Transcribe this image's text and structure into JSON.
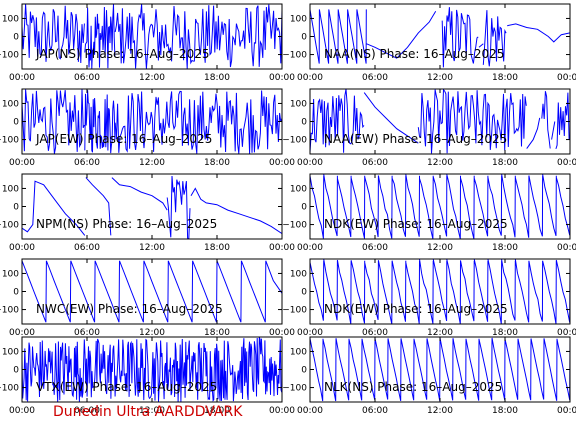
{
  "footer": {
    "label": "Dunedin Ultra AARDDVARK",
    "color": "#cc0000"
  },
  "style": {
    "trace_color": "#0000ff",
    "axis_color": "#000000",
    "background": "#ffffff"
  },
  "chart_data": [
    {
      "type": "line",
      "title": "JAP(NS) Phase: 16–Aug–2025",
      "xlim": [
        0,
        24
      ],
      "ylim": [
        -180,
        180
      ],
      "x_ticks": [
        "00:00",
        "06:00",
        "12:00",
        "18:00",
        "00:00"
      ],
      "y_ticks": [
        "100",
        "0",
        "−100"
      ],
      "segments": [
        {
          "kind": "noise",
          "x": [
            0,
            5.8
          ]
        },
        {
          "kind": "burst",
          "x": [
            5.8,
            8.6
          ]
        },
        {
          "kind": "noise",
          "x": [
            8.6,
            24
          ]
        }
      ]
    },
    {
      "type": "line",
      "title": "NAA(NS) Phase: 16–Aug–2025",
      "xlim": [
        0,
        24
      ],
      "ylim": [
        -180,
        180
      ],
      "x_ticks": [
        "00:00",
        "06:00",
        "12:00",
        "18:00",
        "00:00"
      ],
      "y_ticks": [
        "100",
        "0",
        "−100"
      ],
      "segments": [
        {
          "kind": "ramps",
          "x": [
            0,
            5.2
          ],
          "count": 6,
          "from": 150,
          "to": -150
        },
        {
          "kind": "points",
          "pts": [
            [
              5.2,
              -40
            ],
            [
              6,
              -60
            ],
            [
              7,
              -90
            ],
            [
              8,
              -120
            ],
            [
              9,
              -60
            ],
            [
              10,
              20
            ],
            [
              11,
              80
            ],
            [
              11.6,
              140
            ]
          ]
        },
        {
          "kind": "noise",
          "x": [
            12.2,
            15.6
          ]
        },
        {
          "kind": "points",
          "pts": [
            [
              15.6,
              -60
            ],
            [
              16,
              -40
            ]
          ]
        },
        {
          "kind": "noise",
          "x": [
            16,
            18.2
          ]
        },
        {
          "kind": "points",
          "pts": [
            [
              18.2,
              60
            ],
            [
              19,
              70
            ],
            [
              20,
              50
            ],
            [
              21,
              40
            ],
            [
              22,
              0
            ],
            [
              22.5,
              -30
            ],
            [
              23.2,
              10
            ],
            [
              24,
              20
            ]
          ]
        }
      ]
    },
    {
      "type": "line",
      "title": "JAP(EW) Phase: 16–Aug–2025",
      "xlim": [
        0,
        24
      ],
      "ylim": [
        -180,
        180
      ],
      "x_ticks": [
        "00:00",
        "06:00",
        "12:00",
        "18:00",
        "00:00"
      ],
      "y_ticks": [
        "100",
        "0",
        "−100"
      ],
      "segments": [
        {
          "kind": "noise",
          "x": [
            0,
            5.8
          ]
        },
        {
          "kind": "burst",
          "x": [
            5.8,
            8.6
          ]
        },
        {
          "kind": "noise",
          "x": [
            8.6,
            24
          ]
        }
      ]
    },
    {
      "type": "line",
      "title": "NAA(EW) Phase: 16–Aug–2025",
      "xlim": [
        0,
        24
      ],
      "ylim": [
        -180,
        180
      ],
      "x_ticks": [
        "00:00",
        "06:00",
        "12:00",
        "18:00",
        "00:00"
      ],
      "y_ticks": [
        "100",
        "0",
        "−100"
      ],
      "segments": [
        {
          "kind": "noise",
          "x": [
            0,
            5.0
          ]
        },
        {
          "kind": "points",
          "pts": [
            [
              5.0,
              160
            ],
            [
              6,
              80
            ],
            [
              7,
              20
            ],
            [
              8,
              -40
            ],
            [
              9,
              -80
            ],
            [
              10,
              -120
            ]
          ]
        },
        {
          "kind": "noise",
          "x": [
            10,
            20
          ]
        },
        {
          "kind": "points",
          "pts": [
            [
              20,
              -150
            ],
            [
              20.6,
              -100
            ],
            [
              21,
              -40
            ],
            [
              21.2,
              20
            ]
          ]
        },
        {
          "kind": "noise",
          "x": [
            21.4,
            22.2
          ]
        },
        {
          "kind": "points",
          "pts": [
            [
              22.3,
              -100
            ],
            [
              22.6,
              0
            ]
          ]
        },
        {
          "kind": "noise",
          "x": [
            22.7,
            24
          ]
        }
      ]
    },
    {
      "type": "line",
      "title": "NPM(NS) Phase: 16–Aug–2025",
      "xlim": [
        0,
        24
      ],
      "ylim": [
        -180,
        180
      ],
      "x_ticks": [
        "00:00",
        "06:00",
        "12:00",
        "18:00",
        "00:00"
      ],
      "y_ticks": [
        "100",
        "0",
        "−100"
      ],
      "segments": [
        {
          "kind": "points",
          "pts": [
            [
              0,
              -120
            ],
            [
              0.5,
              -140
            ],
            [
              1.0,
              -100
            ],
            [
              1.2,
              140
            ],
            [
              2,
              120
            ],
            [
              3,
              40
            ],
            [
              4,
              -40
            ],
            [
              5,
              -100
            ],
            [
              5.8,
              -160
            ]
          ]
        },
        {
          "kind": "points",
          "pts": [
            [
              5.9,
              160
            ],
            [
              6.5,
              120
            ],
            [
              7.5,
              60
            ],
            [
              8,
              20
            ],
            [
              8.2,
              -160
            ]
          ]
        },
        {
          "kind": "points",
          "pts": [
            [
              8.3,
              160
            ],
            [
              9,
              120
            ],
            [
              10,
              110
            ],
            [
              11,
              80
            ],
            [
              12,
              60
            ],
            [
              13,
              20
            ],
            [
              13.4,
              -20
            ]
          ]
        },
        {
          "kind": "noise",
          "x": [
            13.4,
            15.6
          ]
        },
        {
          "kind": "points",
          "pts": [
            [
              15.6,
              60
            ],
            [
              16,
              100
            ],
            [
              16.5,
              40
            ],
            [
              17,
              20
            ],
            [
              18,
              10
            ],
            [
              19,
              -20
            ],
            [
              20,
              -40
            ],
            [
              21,
              -60
            ],
            [
              22,
              -80
            ],
            [
              23,
              -110
            ],
            [
              24,
              -150
            ]
          ]
        }
      ]
    },
    {
      "type": "line",
      "title": "NDK(EW) Phase: 16–Aug–2025",
      "xlim": [
        0,
        24
      ],
      "ylim": [
        -180,
        180
      ],
      "x_ticks": [
        "00:00",
        "06:00",
        "12:00",
        "18:00",
        "00:00"
      ],
      "y_ticks": [
        "100",
        "0",
        "−100"
      ],
      "segments": [
        {
          "kind": "ramps",
          "x": [
            0,
            24
          ],
          "count": 19,
          "from": 170,
          "to": -170,
          "jitter": 30
        }
      ]
    },
    {
      "type": "line",
      "title": "NWC(EW) Phase: 16–Aug–2025",
      "xlim": [
        0,
        24
      ],
      "ylim": [
        -180,
        180
      ],
      "x_ticks": [
        "00:00",
        "06:00",
        "12:00",
        "18:00",
        "00:00"
      ],
      "y_ticks": [
        "100",
        "0",
        "−100"
      ],
      "segments": [
        {
          "kind": "ramps",
          "x": [
            0,
            22.5
          ],
          "count": 10,
          "from": 170,
          "to": -170
        },
        {
          "kind": "points",
          "pts": [
            [
              22.5,
              170
            ],
            [
              23.2,
              60
            ],
            [
              24,
              -10
            ]
          ]
        }
      ]
    },
    {
      "type": "line",
      "title": "NDK(EW) Phase: 16–Aug–2025",
      "xlim": [
        0,
        24
      ],
      "ylim": [
        -180,
        180
      ],
      "x_ticks": [
        "00:00",
        "06:00",
        "12:00",
        "18:00",
        "00:00"
      ],
      "y_ticks": [
        "100",
        "0",
        "−100"
      ],
      "segments": [
        {
          "kind": "ramps",
          "x": [
            0,
            24
          ],
          "count": 19,
          "from": 170,
          "to": -170,
          "jitter": 30
        }
      ]
    },
    {
      "type": "line",
      "title": "VTX(EW) Phase: 16–Aug–2025",
      "xlim": [
        0,
        24
      ],
      "ylim": [
        -180,
        180
      ],
      "x_ticks": [
        "00:00",
        "06:00",
        "12:00",
        "18:00",
        "00:00"
      ],
      "y_ticks": [
        "100",
        "0",
        "−100"
      ],
      "segments": [
        {
          "kind": "burst",
          "x": [
            0,
            24
          ]
        }
      ]
    },
    {
      "type": "line",
      "title": "NLK(NS) Phase: 16–Aug–2025",
      "xlim": [
        0,
        24
      ],
      "ylim": [
        -180,
        180
      ],
      "x_ticks": [
        "00:00",
        "06:00",
        "12:00",
        "18:00",
        "00:00"
      ],
      "y_ticks": [
        "100",
        "0",
        "−100"
      ],
      "segments": [
        {
          "kind": "ramps",
          "x": [
            0,
            24
          ],
          "count": 20,
          "from": 170,
          "to": -170,
          "jitter": 10
        }
      ]
    }
  ]
}
